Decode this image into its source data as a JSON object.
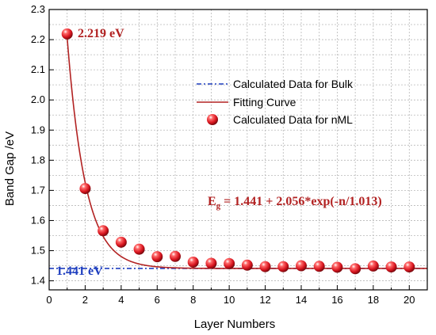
{
  "chart_data": {
    "type": "scatter",
    "xlabel": "Layer Numbers",
    "ylabel": "Band Gap /eV",
    "xlim": [
      0,
      21
    ],
    "ylim": [
      1.37,
      2.3
    ],
    "xticks": [
      0,
      2,
      4,
      6,
      8,
      10,
      12,
      14,
      16,
      18,
      20
    ],
    "yticks": [
      1.4,
      1.5,
      1.6,
      1.7,
      1.8,
      1.9,
      2.0,
      2.1,
      2.2,
      2.3
    ],
    "ytick_labels": [
      "1.4",
      "1.5",
      "1.6",
      "1.7",
      "1.8",
      "1.9",
      "2.0",
      "2.1",
      "2.2",
      "2.3"
    ],
    "grid": true,
    "legend_position": "center-right",
    "series": [
      {
        "name": "Calculated Data for Bulk",
        "kind": "hline",
        "y": 1.441,
        "color": "#1f3fbf"
      },
      {
        "name": "Fitting Curve",
        "kind": "curve",
        "formula": {
          "a": 1.441,
          "b": 2.056,
          "c": 1.013
        },
        "x_range": [
          1,
          21
        ],
        "color": "#b22222"
      },
      {
        "name": "Calculated Data for nML",
        "kind": "points",
        "color": "#d7141e",
        "x": [
          1,
          2,
          3,
          4,
          5,
          6,
          7,
          8,
          9,
          10,
          11,
          12,
          13,
          14,
          15,
          16,
          17,
          18,
          19,
          20
        ],
        "y": [
          2.219,
          1.706,
          1.566,
          1.528,
          1.505,
          1.48,
          1.481,
          1.462,
          1.458,
          1.457,
          1.452,
          1.447,
          1.447,
          1.45,
          1.448,
          1.445,
          1.44,
          1.449,
          1.446,
          1.446
        ]
      }
    ],
    "annotations": {
      "top_value": "2.219 eV",
      "bulk_value": "1.441 eV",
      "equation_prefix": "E",
      "equation_sub": "g",
      "equation_rest": " = 1.441 + 2.056*exp(-n/1.013)"
    }
  }
}
